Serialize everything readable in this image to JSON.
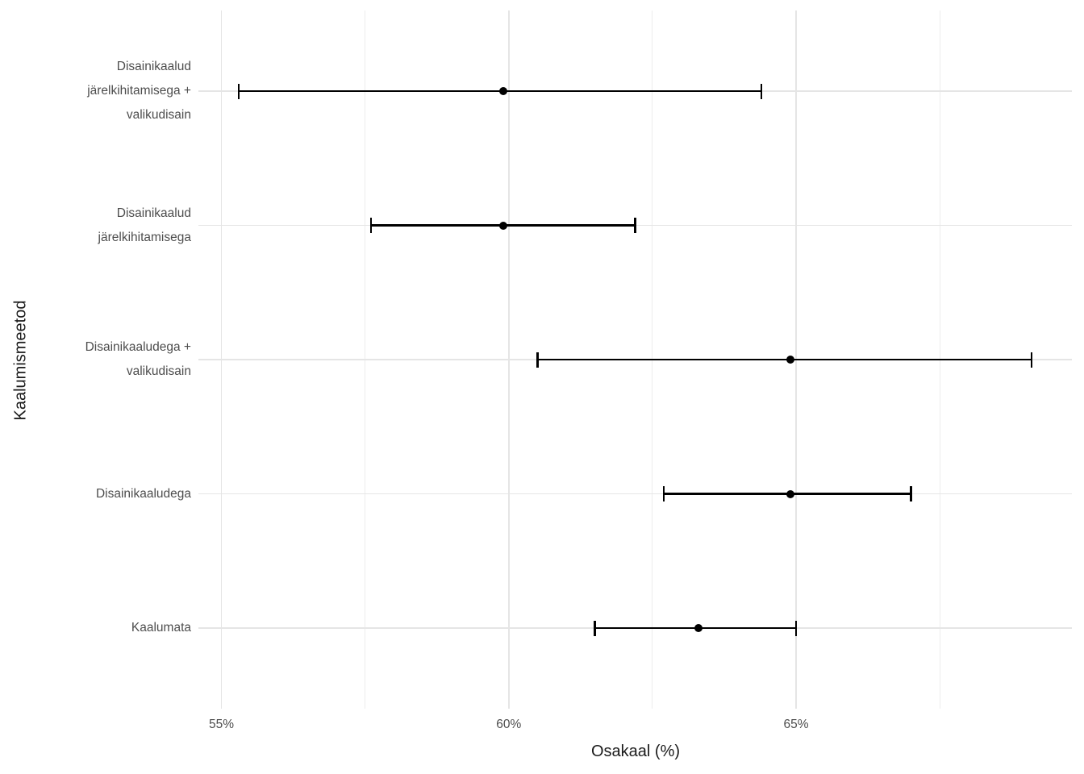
{
  "chart_data": {
    "type": "scatter",
    "subtype": "dot-plot-with-error-bars",
    "title": "",
    "xlabel": "Osakaal (%)",
    "ylabel": "Kaalumismeetod",
    "xlim": [
      54.6,
      69.8
    ],
    "x_ticks": [
      {
        "value": 55,
        "label": "55%"
      },
      {
        "value": 60,
        "label": "60%"
      },
      {
        "value": 65,
        "label": "65%"
      }
    ],
    "x_minor_ticks": [
      57.5,
      62.5,
      67.5
    ],
    "grid": "on",
    "legend": "none",
    "series": [
      {
        "category": "Disainikaalud järelkihitamisega + valikudisain",
        "label_lines": [
          "Disainikaalud",
          "järelkihitamisega +",
          "valikudisain"
        ],
        "estimate": 59.9,
        "ci_low": 55.3,
        "ci_high": 64.4
      },
      {
        "category": "Disainikaalud järelkihitamisega",
        "label_lines": [
          "Disainikaalud",
          "järelkihitamisega"
        ],
        "estimate": 59.9,
        "ci_low": 57.6,
        "ci_high": 62.2
      },
      {
        "category": "Disainikaaludega + valikudisain",
        "label_lines": [
          "Disainikaaludega +",
          "valikudisain"
        ],
        "estimate": 64.9,
        "ci_low": 60.5,
        "ci_high": 69.1
      },
      {
        "category": "Disainikaaludega",
        "label_lines": [
          "Disainikaaludega"
        ],
        "estimate": 64.9,
        "ci_low": 62.7,
        "ci_high": 67.0
      },
      {
        "category": "Kaalumata",
        "label_lines": [
          "Kaalumata"
        ],
        "estimate": 63.3,
        "ci_low": 61.5,
        "ci_high": 65.0
      }
    ],
    "colors": {
      "point": "#000000",
      "errorbar": "#000000",
      "grid_major": "#e5e5e5",
      "grid_minor": "#ededed",
      "axis_text": "#4d4d4d",
      "axis_title": "#1a1a1a",
      "background": "#ffffff"
    }
  }
}
